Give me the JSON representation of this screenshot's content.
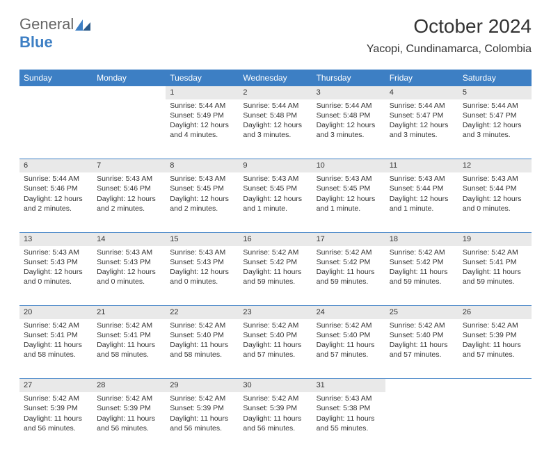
{
  "logo": {
    "part1": "General",
    "part2": "Blue"
  },
  "header": {
    "title": "October 2024",
    "location": "Yacopi, Cundinamarca, Colombia"
  },
  "days": [
    "Sunday",
    "Monday",
    "Tuesday",
    "Wednesday",
    "Thursday",
    "Friday",
    "Saturday"
  ],
  "colors": {
    "header_bg": "#3d7fc4",
    "header_text": "#ffffff",
    "daynum_bg": "#e9e9e9",
    "border": "#3d7fc4",
    "text": "#333333"
  },
  "weeks": [
    [
      null,
      null,
      {
        "n": "1",
        "sr": "Sunrise: 5:44 AM",
        "ss": "Sunset: 5:49 PM",
        "dl": "Daylight: 12 hours and 4 minutes."
      },
      {
        "n": "2",
        "sr": "Sunrise: 5:44 AM",
        "ss": "Sunset: 5:48 PM",
        "dl": "Daylight: 12 hours and 3 minutes."
      },
      {
        "n": "3",
        "sr": "Sunrise: 5:44 AM",
        "ss": "Sunset: 5:48 PM",
        "dl": "Daylight: 12 hours and 3 minutes."
      },
      {
        "n": "4",
        "sr": "Sunrise: 5:44 AM",
        "ss": "Sunset: 5:47 PM",
        "dl": "Daylight: 12 hours and 3 minutes."
      },
      {
        "n": "5",
        "sr": "Sunrise: 5:44 AM",
        "ss": "Sunset: 5:47 PM",
        "dl": "Daylight: 12 hours and 3 minutes."
      }
    ],
    [
      {
        "n": "6",
        "sr": "Sunrise: 5:44 AM",
        "ss": "Sunset: 5:46 PM",
        "dl": "Daylight: 12 hours and 2 minutes."
      },
      {
        "n": "7",
        "sr": "Sunrise: 5:43 AM",
        "ss": "Sunset: 5:46 PM",
        "dl": "Daylight: 12 hours and 2 minutes."
      },
      {
        "n": "8",
        "sr": "Sunrise: 5:43 AM",
        "ss": "Sunset: 5:45 PM",
        "dl": "Daylight: 12 hours and 2 minutes."
      },
      {
        "n": "9",
        "sr": "Sunrise: 5:43 AM",
        "ss": "Sunset: 5:45 PM",
        "dl": "Daylight: 12 hours and 1 minute."
      },
      {
        "n": "10",
        "sr": "Sunrise: 5:43 AM",
        "ss": "Sunset: 5:45 PM",
        "dl": "Daylight: 12 hours and 1 minute."
      },
      {
        "n": "11",
        "sr": "Sunrise: 5:43 AM",
        "ss": "Sunset: 5:44 PM",
        "dl": "Daylight: 12 hours and 1 minute."
      },
      {
        "n": "12",
        "sr": "Sunrise: 5:43 AM",
        "ss": "Sunset: 5:44 PM",
        "dl": "Daylight: 12 hours and 0 minutes."
      }
    ],
    [
      {
        "n": "13",
        "sr": "Sunrise: 5:43 AM",
        "ss": "Sunset: 5:43 PM",
        "dl": "Daylight: 12 hours and 0 minutes."
      },
      {
        "n": "14",
        "sr": "Sunrise: 5:43 AM",
        "ss": "Sunset: 5:43 PM",
        "dl": "Daylight: 12 hours and 0 minutes."
      },
      {
        "n": "15",
        "sr": "Sunrise: 5:43 AM",
        "ss": "Sunset: 5:43 PM",
        "dl": "Daylight: 12 hours and 0 minutes."
      },
      {
        "n": "16",
        "sr": "Sunrise: 5:42 AM",
        "ss": "Sunset: 5:42 PM",
        "dl": "Daylight: 11 hours and 59 minutes."
      },
      {
        "n": "17",
        "sr": "Sunrise: 5:42 AM",
        "ss": "Sunset: 5:42 PM",
        "dl": "Daylight: 11 hours and 59 minutes."
      },
      {
        "n": "18",
        "sr": "Sunrise: 5:42 AM",
        "ss": "Sunset: 5:42 PM",
        "dl": "Daylight: 11 hours and 59 minutes."
      },
      {
        "n": "19",
        "sr": "Sunrise: 5:42 AM",
        "ss": "Sunset: 5:41 PM",
        "dl": "Daylight: 11 hours and 59 minutes."
      }
    ],
    [
      {
        "n": "20",
        "sr": "Sunrise: 5:42 AM",
        "ss": "Sunset: 5:41 PM",
        "dl": "Daylight: 11 hours and 58 minutes."
      },
      {
        "n": "21",
        "sr": "Sunrise: 5:42 AM",
        "ss": "Sunset: 5:41 PM",
        "dl": "Daylight: 11 hours and 58 minutes."
      },
      {
        "n": "22",
        "sr": "Sunrise: 5:42 AM",
        "ss": "Sunset: 5:40 PM",
        "dl": "Daylight: 11 hours and 58 minutes."
      },
      {
        "n": "23",
        "sr": "Sunrise: 5:42 AM",
        "ss": "Sunset: 5:40 PM",
        "dl": "Daylight: 11 hours and 57 minutes."
      },
      {
        "n": "24",
        "sr": "Sunrise: 5:42 AM",
        "ss": "Sunset: 5:40 PM",
        "dl": "Daylight: 11 hours and 57 minutes."
      },
      {
        "n": "25",
        "sr": "Sunrise: 5:42 AM",
        "ss": "Sunset: 5:40 PM",
        "dl": "Daylight: 11 hours and 57 minutes."
      },
      {
        "n": "26",
        "sr": "Sunrise: 5:42 AM",
        "ss": "Sunset: 5:39 PM",
        "dl": "Daylight: 11 hours and 57 minutes."
      }
    ],
    [
      {
        "n": "27",
        "sr": "Sunrise: 5:42 AM",
        "ss": "Sunset: 5:39 PM",
        "dl": "Daylight: 11 hours and 56 minutes."
      },
      {
        "n": "28",
        "sr": "Sunrise: 5:42 AM",
        "ss": "Sunset: 5:39 PM",
        "dl": "Daylight: 11 hours and 56 minutes."
      },
      {
        "n": "29",
        "sr": "Sunrise: 5:42 AM",
        "ss": "Sunset: 5:39 PM",
        "dl": "Daylight: 11 hours and 56 minutes."
      },
      {
        "n": "30",
        "sr": "Sunrise: 5:42 AM",
        "ss": "Sunset: 5:39 PM",
        "dl": "Daylight: 11 hours and 56 minutes."
      },
      {
        "n": "31",
        "sr": "Sunrise: 5:43 AM",
        "ss": "Sunset: 5:38 PM",
        "dl": "Daylight: 11 hours and 55 minutes."
      },
      null,
      null
    ]
  ]
}
